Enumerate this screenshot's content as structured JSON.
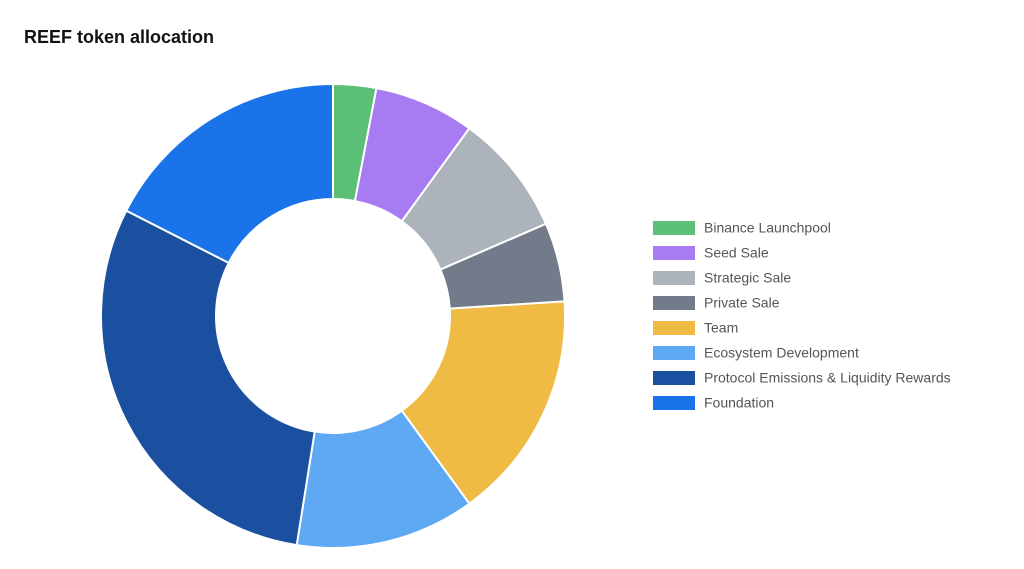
{
  "chart_data": {
    "type": "donut",
    "title": "REEF token allocation",
    "categories": [
      "Binance Launchpool",
      "Seed Sale",
      "Strategic Sale",
      "Private Sale",
      "Team",
      "Ecosystem Development",
      "Protocol Emissions & Liquidity Rewards",
      "Foundation"
    ],
    "values": [
      3,
      7,
      8.5,
      5.5,
      16,
      12.5,
      30,
      17.5
    ],
    "colors": [
      "#5cbf76",
      "#a77bf2",
      "#adb3ba",
      "#737a89",
      "#efbb44",
      "#5ea8f4",
      "#1b4fa0",
      "#1a73e8"
    ],
    "legend": "right"
  }
}
